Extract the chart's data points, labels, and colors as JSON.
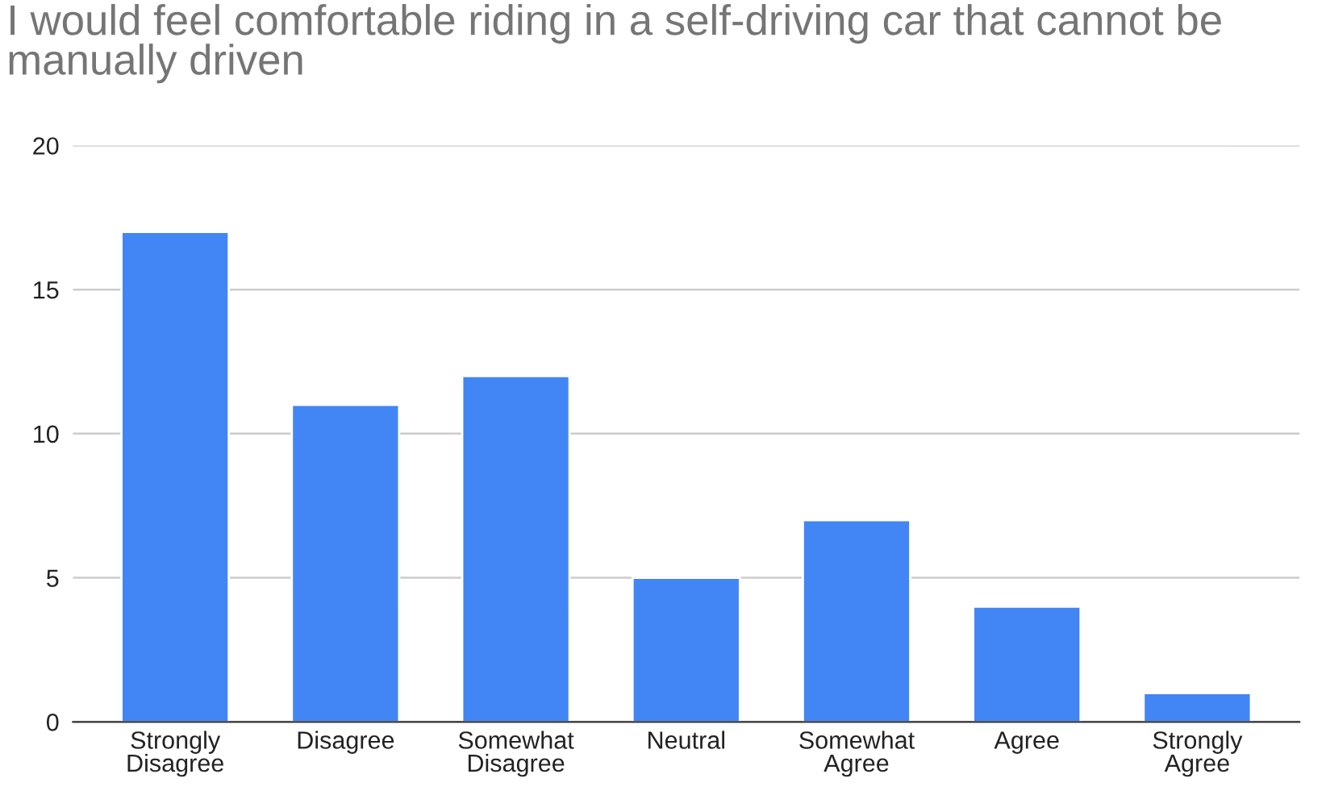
{
  "chart_data": {
    "type": "bar",
    "title": "I would feel comfortable riding in a self-driving car that cannot be manually driven",
    "categories": [
      "Strongly Disagree",
      "Disagree",
      "Somewhat Disagree",
      "Neutral",
      "Somewhat Agree",
      "Agree",
      "Strongly Agree"
    ],
    "values": [
      17,
      11,
      12,
      5,
      7,
      4,
      1
    ],
    "color": "#4285f4",
    "ylim": [
      0,
      20
    ],
    "yticks": [
      0,
      5,
      10,
      15,
      20
    ],
    "grid": "y",
    "legend": false
  }
}
